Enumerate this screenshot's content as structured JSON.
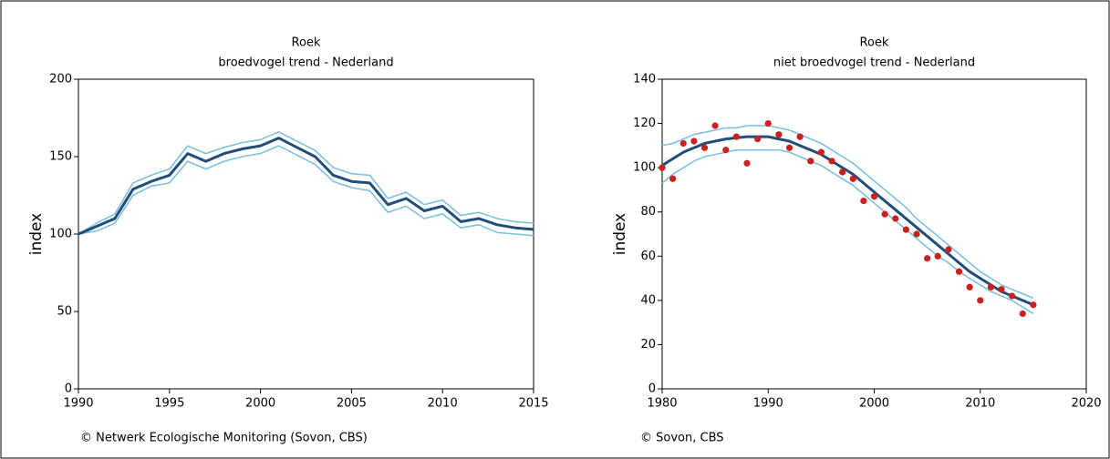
{
  "chart_data": [
    {
      "type": "line",
      "title": "Roek",
      "subtitle": "broedvogel trend - Nederland",
      "ylabel": "index",
      "note": "© Netwerk Ecologische Monitoring (Sovon, CBS)",
      "xlim": [
        1990,
        2015
      ],
      "xticks": [
        1990,
        1995,
        2000,
        2005,
        2010,
        2015
      ],
      "ylim": [
        0,
        200
      ],
      "yticks": [
        0,
        50,
        100,
        150,
        200
      ],
      "x": [
        1990,
        1991,
        1992,
        1993,
        1994,
        1995,
        1996,
        1997,
        1998,
        1999,
        2000,
        2001,
        2002,
        2003,
        2004,
        2005,
        2006,
        2007,
        2008,
        2009,
        2010,
        2011,
        2012,
        2013,
        2014,
        2015
      ],
      "series": [
        {
          "mark": "line",
          "color": "#7ec0e0",
          "values": [
            100,
            107,
            113,
            133,
            138,
            142,
            157,
            152,
            156,
            159,
            161,
            166,
            160,
            154,
            143,
            139,
            138,
            123,
            127,
            119,
            122,
            112,
            114,
            110,
            108,
            107
          ]
        },
        {
          "mark": "line",
          "color": "#7ec0e0",
          "values": [
            100,
            102,
            107,
            125,
            131,
            133,
            147,
            142,
            147,
            150,
            152,
            157,
            151,
            145,
            134,
            130,
            128,
            114,
            118,
            110,
            113,
            104,
            106,
            101,
            100,
            99
          ]
        },
        {
          "mark": "line",
          "color": "#1f4e79",
          "values": [
            100,
            105,
            110,
            129,
            134,
            138,
            152,
            147,
            152,
            155,
            157,
            162,
            156,
            150,
            138,
            134,
            133,
            119,
            123,
            115,
            118,
            108,
            110,
            106,
            104,
            103
          ]
        }
      ]
    },
    {
      "type": "line",
      "title": "Roek",
      "subtitle": "niet broedvogel trend - Nederland",
      "ylabel": "index",
      "note": "© Sovon, CBS",
      "xlim": [
        1980,
        2020
      ],
      "xticks": [
        1980,
        1990,
        2000,
        2010,
        2020
      ],
      "ylim": [
        0,
        140
      ],
      "yticks": [
        0,
        20,
        40,
        60,
        80,
        100,
        120,
        140
      ],
      "x": [
        1980,
        1981,
        1982,
        1983,
        1984,
        1985,
        1986,
        1987,
        1988,
        1989,
        1990,
        1991,
        1992,
        1993,
        1994,
        1995,
        1996,
        1997,
        1998,
        1999,
        2000,
        2001,
        2002,
        2003,
        2004,
        2005,
        2006,
        2007,
        2008,
        2009,
        2010,
        2011,
        2012,
        2013,
        2014,
        2015
      ],
      "series": [
        {
          "mark": "line",
          "color": "#7ec0e0",
          "values": [
            110,
            111,
            113,
            115,
            116,
            117,
            118,
            118,
            119,
            119,
            119,
            118,
            117,
            115,
            113,
            111,
            108,
            105,
            102,
            98,
            94,
            90,
            86,
            82,
            77,
            73,
            69,
            65,
            61,
            57,
            53,
            50,
            47,
            45,
            43,
            41
          ]
        },
        {
          "mark": "line",
          "color": "#7ec0e0",
          "values": [
            93,
            97,
            100,
            103,
            105,
            106,
            107,
            108,
            108,
            108,
            108,
            108,
            107,
            105,
            103,
            101,
            98,
            95,
            92,
            88,
            84,
            80,
            76,
            72,
            68,
            64,
            60,
            57,
            53,
            50,
            47,
            44,
            42,
            40,
            37,
            34
          ]
        },
        {
          "mark": "line",
          "color": "#1f4e79",
          "values": [
            101,
            104,
            107,
            109,
            111,
            112,
            113,
            113.5,
            114,
            114,
            114,
            113,
            112,
            110,
            108,
            106,
            103,
            100,
            97,
            93,
            89,
            85,
            81,
            77,
            73,
            69,
            65,
            61,
            57,
            53,
            50,
            47,
            44,
            42,
            40,
            38
          ]
        },
        {
          "mark": "dot",
          "color": "#cc1f1f",
          "values": [
            100,
            95,
            111,
            112,
            109,
            119,
            108,
            114,
            102,
            113,
            120,
            115,
            109,
            114,
            103,
            107,
            103,
            98,
            95,
            85,
            87,
            79,
            77,
            72,
            70,
            59,
            60,
            63,
            53,
            46,
            40,
            46,
            45,
            42,
            34,
            38
          ]
        }
      ]
    }
  ]
}
